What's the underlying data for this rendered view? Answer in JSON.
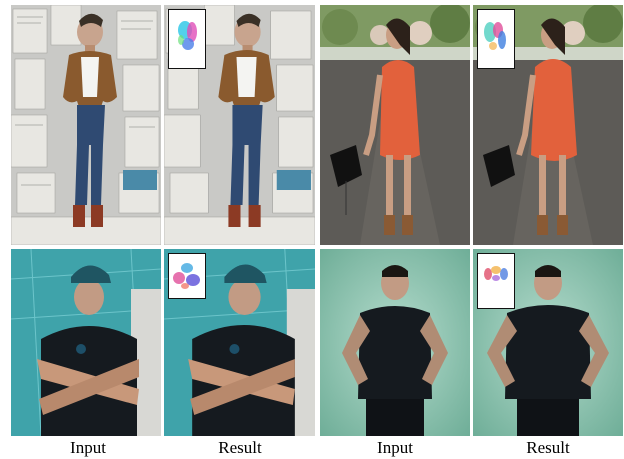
{
  "captions": {
    "col1": "Input",
    "col2": "Result",
    "col3": "Input",
    "col4": "Result"
  },
  "panels": [
    {
      "scene": "woman-newspaper-wall",
      "role": "input"
    },
    {
      "scene": "woman-newspaper-wall",
      "role": "result",
      "has_flow_inset": true
    },
    {
      "scene": "woman-orange-dress-road",
      "role": "input"
    },
    {
      "scene": "woman-orange-dress-road",
      "role": "result",
      "has_flow_inset": true
    },
    {
      "scene": "man-crossed-arms-teal-wall",
      "role": "input"
    },
    {
      "scene": "man-crossed-arms-teal-wall",
      "role": "result",
      "has_flow_inset": true
    },
    {
      "scene": "man-hands-on-hips-green-backdrop",
      "role": "input"
    },
    {
      "scene": "man-hands-on-hips-green-backdrop",
      "role": "result",
      "has_flow_inset": true
    }
  ],
  "colors": {
    "newspaper_bg": "#c9c9c6",
    "jacket": "#8a5a2e",
    "jeans": "#2f4a72",
    "road": "#5d5b57",
    "dress": "#e2613c",
    "teal_wall": "#3fa3aa",
    "shirt_dark": "#151a1f",
    "green_backdrop": "#8fc3b1"
  }
}
